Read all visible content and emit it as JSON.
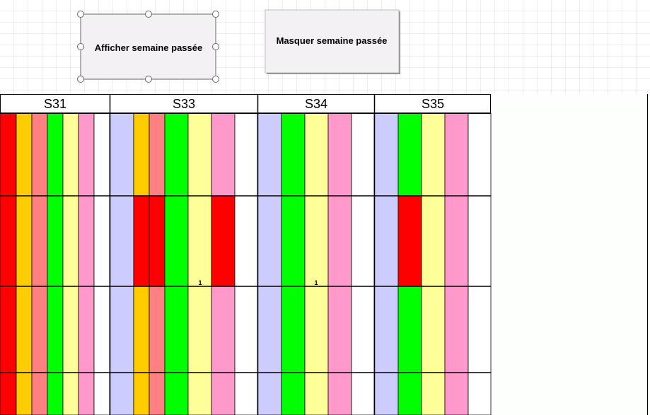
{
  "buttons": [
    "Afficher semaine passée",
    "Masquer semaine passée"
  ],
  "weeks": [
    "S31",
    "S33",
    "S34",
    "S35"
  ],
  "cells": [
    {
      "week": "S33",
      "text": "1"
    },
    {
      "week": "S34",
      "text": "1"
    }
  ]
}
